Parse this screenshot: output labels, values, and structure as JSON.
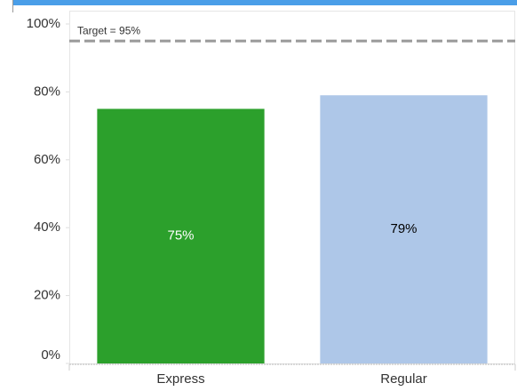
{
  "chart_data": {
    "type": "bar",
    "categories": [
      "Express",
      "Regular"
    ],
    "values": [
      75,
      79
    ],
    "value_labels": [
      "75%",
      "79%"
    ],
    "colors": [
      "#2ca02c",
      "#aec7e8"
    ],
    "ylim": [
      0,
      100
    ],
    "yticks": [
      {
        "value": 0,
        "label": "0%"
      },
      {
        "value": 20,
        "label": "20%"
      },
      {
        "value": 40,
        "label": "40%"
      },
      {
        "value": 60,
        "label": "60%"
      },
      {
        "value": 80,
        "label": "80%"
      },
      {
        "value": 100,
        "label": "100%"
      }
    ],
    "target": {
      "value": 95,
      "label": "Target = 95%"
    },
    "grid": false
  }
}
